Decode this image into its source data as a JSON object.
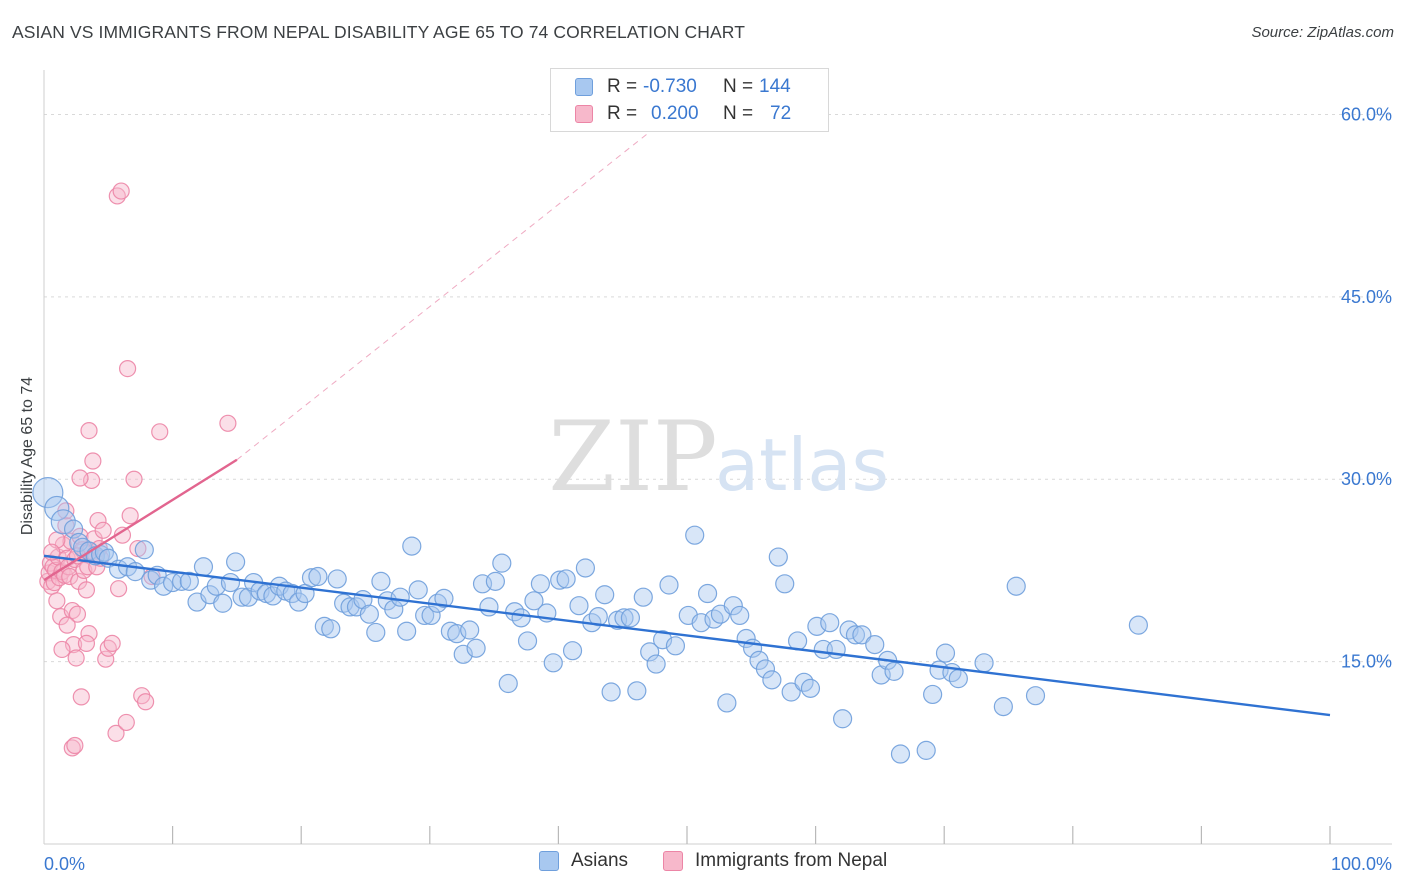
{
  "title": "ASIAN VS IMMIGRANTS FROM NEPAL DISABILITY AGE 65 TO 74 CORRELATION CHART",
  "source": "Source: ZipAtlas.com",
  "watermark": {
    "zip": "ZIP",
    "atlas": "atlas"
  },
  "colors": {
    "blue_fill": "#a8c8f0",
    "blue_stroke": "#6f9fdc",
    "blue_line": "#2f72d2",
    "pink_fill": "#f7b8cb",
    "pink_stroke": "#ec85a6",
    "pink_line": "#e2658f",
    "tick_label": "#3a78d0",
    "grid": "#d9d9d9"
  },
  "legend": [
    {
      "r_label": "R =",
      "r_value": "-0.730",
      "n_label": "N =",
      "n_value": "144"
    },
    {
      "r_label": "R =",
      "r_value": "0.200",
      "n_label": "N =",
      "n_value": "72"
    }
  ],
  "bottom_legend": [
    "Asians",
    "Immigrants from Nepal"
  ],
  "chart_data": {
    "type": "scatter",
    "title": "ASIAN VS IMMIGRANTS FROM NEPAL DISABILITY AGE 65 TO 74 CORRELATION CHART",
    "xlabel": "",
    "ylabel": "Disability Age 65 to 74",
    "xlim": [
      0,
      100
    ],
    "ylim": [
      0,
      63
    ],
    "x_tick_labels": [
      "0.0%",
      "100.0%"
    ],
    "y_ticks": [
      15,
      30,
      45,
      60
    ],
    "y_tick_labels": [
      "15.0%",
      "30.0%",
      "45.0%",
      "60.0%"
    ],
    "grid": true,
    "legend_placement": "top-center",
    "series": [
      {
        "name": "Asians",
        "r": -0.73,
        "n": 144,
        "trendline": {
          "x": [
            0,
            100
          ],
          "y": [
            23.7,
            10.6
          ]
        },
        "points": [
          [
            0.3,
            28.9
          ],
          [
            1.0,
            27.6
          ],
          [
            1.5,
            26.5
          ],
          [
            2.3,
            25.9
          ],
          [
            2.7,
            24.8
          ],
          [
            3.0,
            24.4
          ],
          [
            3.5,
            24.1
          ],
          [
            4.0,
            23.7
          ],
          [
            4.4,
            23.8
          ],
          [
            4.7,
            24.0
          ],
          [
            5.0,
            23.5
          ],
          [
            5.8,
            22.6
          ],
          [
            6.5,
            22.8
          ],
          [
            7.1,
            22.4
          ],
          [
            7.8,
            24.2
          ],
          [
            8.3,
            21.7
          ],
          [
            8.8,
            22.1
          ],
          [
            9.3,
            21.2
          ],
          [
            10.0,
            21.5
          ],
          [
            10.7,
            21.6
          ],
          [
            11.3,
            21.6
          ],
          [
            11.9,
            19.9
          ],
          [
            12.4,
            22.8
          ],
          [
            12.9,
            20.5
          ],
          [
            13.4,
            21.2
          ],
          [
            13.9,
            19.8
          ],
          [
            14.5,
            21.5
          ],
          [
            14.9,
            23.2
          ],
          [
            15.4,
            20.3
          ],
          [
            15.9,
            20.3
          ],
          [
            16.3,
            21.5
          ],
          [
            16.8,
            20.8
          ],
          [
            17.3,
            20.6
          ],
          [
            17.8,
            20.4
          ],
          [
            18.3,
            21.2
          ],
          [
            18.8,
            20.8
          ],
          [
            19.3,
            20.6
          ],
          [
            19.8,
            19.9
          ],
          [
            20.3,
            20.6
          ],
          [
            20.8,
            21.9
          ],
          [
            21.3,
            22.0
          ],
          [
            21.8,
            17.9
          ],
          [
            22.3,
            17.7
          ],
          [
            22.8,
            21.8
          ],
          [
            23.3,
            19.8
          ],
          [
            23.8,
            19.5
          ],
          [
            24.3,
            19.5
          ],
          [
            24.8,
            20.1
          ],
          [
            25.3,
            18.9
          ],
          [
            25.8,
            17.4
          ],
          [
            26.2,
            21.6
          ],
          [
            26.7,
            20.0
          ],
          [
            27.2,
            19.3
          ],
          [
            27.7,
            20.3
          ],
          [
            28.2,
            17.5
          ],
          [
            28.6,
            24.5
          ],
          [
            29.1,
            20.9
          ],
          [
            29.6,
            18.8
          ],
          [
            30.1,
            18.8
          ],
          [
            30.6,
            19.8
          ],
          [
            31.1,
            20.2
          ],
          [
            31.6,
            17.5
          ],
          [
            32.1,
            17.3
          ],
          [
            32.6,
            15.6
          ],
          [
            33.1,
            17.6
          ],
          [
            33.6,
            16.1
          ],
          [
            34.1,
            21.4
          ],
          [
            34.6,
            19.5
          ],
          [
            35.1,
            21.6
          ],
          [
            35.6,
            23.1
          ],
          [
            36.1,
            13.2
          ],
          [
            36.6,
            19.1
          ],
          [
            37.1,
            18.6
          ],
          [
            37.6,
            16.7
          ],
          [
            38.1,
            20.0
          ],
          [
            38.6,
            21.4
          ],
          [
            39.1,
            19.0
          ],
          [
            39.6,
            14.9
          ],
          [
            40.1,
            21.7
          ],
          [
            40.6,
            21.8
          ],
          [
            41.1,
            15.9
          ],
          [
            41.6,
            19.6
          ],
          [
            42.1,
            22.7
          ],
          [
            42.6,
            18.2
          ],
          [
            43.1,
            18.7
          ],
          [
            43.6,
            20.5
          ],
          [
            44.1,
            12.5
          ],
          [
            44.6,
            18.4
          ],
          [
            45.1,
            18.6
          ],
          [
            45.6,
            18.6
          ],
          [
            46.1,
            12.6
          ],
          [
            46.6,
            20.3
          ],
          [
            47.1,
            15.8
          ],
          [
            47.6,
            14.8
          ],
          [
            48.1,
            16.8
          ],
          [
            48.6,
            21.3
          ],
          [
            49.1,
            16.3
          ],
          [
            50.1,
            18.8
          ],
          [
            50.6,
            25.4
          ],
          [
            51.1,
            18.2
          ],
          [
            51.6,
            20.6
          ],
          [
            52.1,
            18.5
          ],
          [
            52.6,
            18.9
          ],
          [
            53.1,
            11.6
          ],
          [
            53.6,
            19.6
          ],
          [
            54.1,
            18.8
          ],
          [
            54.6,
            16.9
          ],
          [
            55.1,
            16.1
          ],
          [
            55.6,
            15.1
          ],
          [
            56.1,
            14.4
          ],
          [
            56.6,
            13.5
          ],
          [
            57.1,
            23.6
          ],
          [
            57.6,
            21.4
          ],
          [
            58.1,
            12.5
          ],
          [
            58.6,
            16.7
          ],
          [
            59.1,
            13.3
          ],
          [
            59.6,
            12.8
          ],
          [
            60.1,
            17.9
          ],
          [
            60.6,
            16.0
          ],
          [
            61.1,
            18.2
          ],
          [
            61.6,
            16.0
          ],
          [
            62.1,
            10.3
          ],
          [
            62.6,
            17.6
          ],
          [
            63.1,
            17.2
          ],
          [
            63.6,
            17.2
          ],
          [
            64.6,
            16.4
          ],
          [
            65.1,
            13.9
          ],
          [
            65.6,
            15.1
          ],
          [
            66.1,
            14.2
          ],
          [
            66.6,
            7.4
          ],
          [
            68.6,
            7.7
          ],
          [
            69.1,
            12.3
          ],
          [
            69.6,
            14.3
          ],
          [
            70.1,
            15.7
          ],
          [
            70.6,
            14.1
          ],
          [
            71.1,
            13.6
          ],
          [
            73.1,
            14.9
          ],
          [
            74.6,
            11.3
          ],
          [
            75.6,
            21.2
          ],
          [
            77.1,
            12.2
          ],
          [
            85.1,
            18.0
          ]
        ]
      },
      {
        "name": "Immigrants from Nepal",
        "r": 0.2,
        "n": 72,
        "trendline": {
          "x": [
            0,
            15
          ],
          "y": [
            21.7,
            31.6
          ]
        },
        "trendline_extended": {
          "x": [
            15,
            50
          ],
          "y": [
            31.6,
            61.0
          ]
        },
        "points": [
          [
            0.3,
            21.6
          ],
          [
            0.4,
            22.3
          ],
          [
            0.5,
            23.1
          ],
          [
            0.6,
            21.2
          ],
          [
            0.7,
            22.8
          ],
          [
            0.8,
            21.5
          ],
          [
            0.9,
            22.5
          ],
          [
            1.0,
            20.0
          ],
          [
            1.1,
            23.6
          ],
          [
            1.2,
            21.9
          ],
          [
            1.3,
            18.7
          ],
          [
            1.4,
            22.4
          ],
          [
            1.5,
            24.6
          ],
          [
            1.6,
            22.1
          ],
          [
            1.7,
            26.2
          ],
          [
            1.8,
            23.5
          ],
          [
            1.9,
            22.8
          ],
          [
            2.0,
            22.0
          ],
          [
            2.1,
            24.9
          ],
          [
            2.2,
            19.2
          ],
          [
            2.3,
            16.4
          ],
          [
            2.4,
            23.4
          ],
          [
            2.5,
            15.3
          ],
          [
            2.6,
            18.9
          ],
          [
            2.7,
            21.6
          ],
          [
            2.8,
            25.3
          ],
          [
            2.9,
            12.1
          ],
          [
            3.0,
            24.2
          ],
          [
            3.1,
            22.5
          ],
          [
            3.2,
            23.9
          ],
          [
            3.3,
            20.9
          ],
          [
            3.4,
            22.8
          ],
          [
            3.5,
            17.3
          ],
          [
            3.6,
            24.1
          ],
          [
            3.7,
            29.9
          ],
          [
            3.8,
            31.5
          ],
          [
            3.9,
            25.1
          ],
          [
            4.0,
            23.8
          ],
          [
            4.1,
            22.8
          ],
          [
            4.2,
            26.6
          ],
          [
            4.3,
            24.3
          ],
          [
            4.4,
            23.5
          ],
          [
            4.6,
            25.8
          ],
          [
            4.8,
            15.2
          ],
          [
            5.0,
            16.1
          ],
          [
            5.3,
            16.5
          ],
          [
            5.6,
            9.1
          ],
          [
            5.8,
            21.0
          ],
          [
            6.1,
            25.4
          ],
          [
            6.4,
            10.0
          ],
          [
            6.7,
            27.0
          ],
          [
            7.0,
            30.0
          ],
          [
            7.3,
            24.3
          ],
          [
            7.6,
            12.2
          ],
          [
            7.9,
            11.7
          ],
          [
            2.2,
            7.9
          ],
          [
            2.4,
            8.1
          ],
          [
            1.4,
            16.0
          ],
          [
            3.3,
            16.5
          ],
          [
            3.5,
            34.0
          ],
          [
            5.7,
            53.3
          ],
          [
            6.0,
            53.7
          ],
          [
            6.5,
            39.1
          ],
          [
            8.4,
            22.0
          ],
          [
            14.3,
            34.6
          ],
          [
            9.0,
            33.9
          ],
          [
            1.7,
            27.4
          ],
          [
            1.0,
            25.0
          ],
          [
            2.8,
            30.1
          ],
          [
            2.6,
            23.7
          ],
          [
            0.6,
            24.0
          ],
          [
            1.8,
            18.0
          ]
        ]
      }
    ]
  }
}
